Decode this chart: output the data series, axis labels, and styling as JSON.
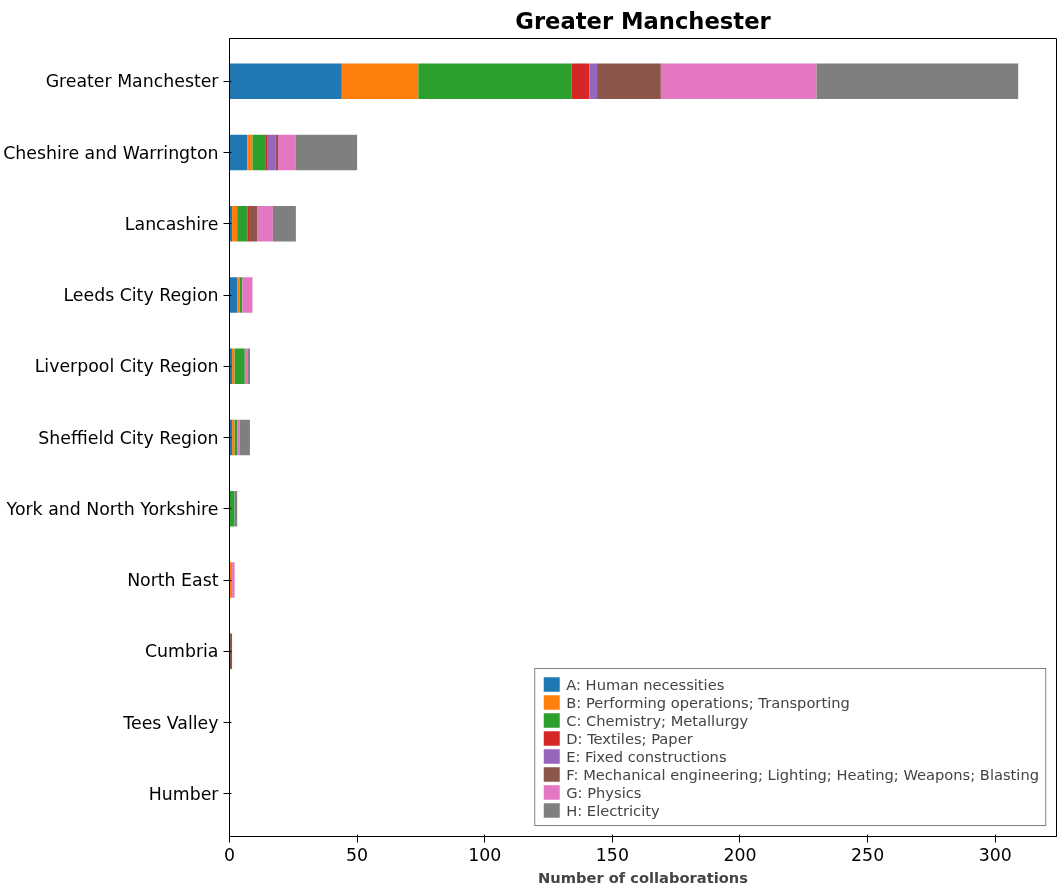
{
  "chart_data": {
    "type": "bar",
    "orientation": "horizontal",
    "stacked": true,
    "title": "Greater Manchester",
    "xlabel": "Number of collaborations",
    "categories": [
      "Greater Manchester",
      "Cheshire and Warrington",
      "Lancashire",
      "Leeds City Region",
      "Liverpool City Region",
      "Sheffield City Region",
      "York and North Yorkshire",
      "North East",
      "Cumbria",
      "Tees Valley",
      "Humber"
    ],
    "series": [
      {
        "name": "A: Human necessities",
        "color": "#1f77b4",
        "values": [
          44,
          7,
          1,
          3,
          1,
          1,
          0,
          0,
          0,
          0,
          0
        ]
      },
      {
        "name": "B: Performing operations; Transporting",
        "color": "#ff7f0e",
        "values": [
          30,
          2,
          2,
          1,
          1,
          1,
          0,
          1,
          0,
          0,
          0
        ]
      },
      {
        "name": "C: Chemistry; Metallurgy",
        "color": "#2ca02c",
        "values": [
          60,
          5,
          4,
          1,
          4,
          1,
          2,
          0,
          0,
          0,
          0
        ]
      },
      {
        "name": "D: Textiles; Paper",
        "color": "#d62728",
        "values": [
          7,
          1,
          1,
          0,
          0,
          0,
          0,
          0,
          0,
          0,
          0
        ]
      },
      {
        "name": "E: Fixed constructions",
        "color": "#9467bd",
        "values": [
          3,
          3,
          0,
          0,
          0,
          0,
          0,
          0,
          0,
          0,
          0
        ]
      },
      {
        "name": "F: Mechanical engineering; Lighting; Heating; Weapons; Blasting",
        "color": "#8c564b",
        "values": [
          25,
          1,
          3,
          0,
          0,
          0,
          0,
          0,
          1,
          0,
          0
        ]
      },
      {
        "name": "G: Physics",
        "color": "#e377c2",
        "values": [
          61,
          7,
          6,
          4,
          1,
          1,
          0,
          1,
          0,
          0,
          0
        ]
      },
      {
        "name": "H: Electricity",
        "color": "#7f7f7f",
        "values": [
          79,
          24,
          9,
          0,
          1,
          4,
          1,
          0,
          0,
          0,
          0
        ]
      }
    ],
    "xlim": [
      0,
      324
    ],
    "xticks": [
      0,
      50,
      100,
      150,
      200,
      250,
      300
    ],
    "grid": false,
    "legend": "bottom right"
  }
}
